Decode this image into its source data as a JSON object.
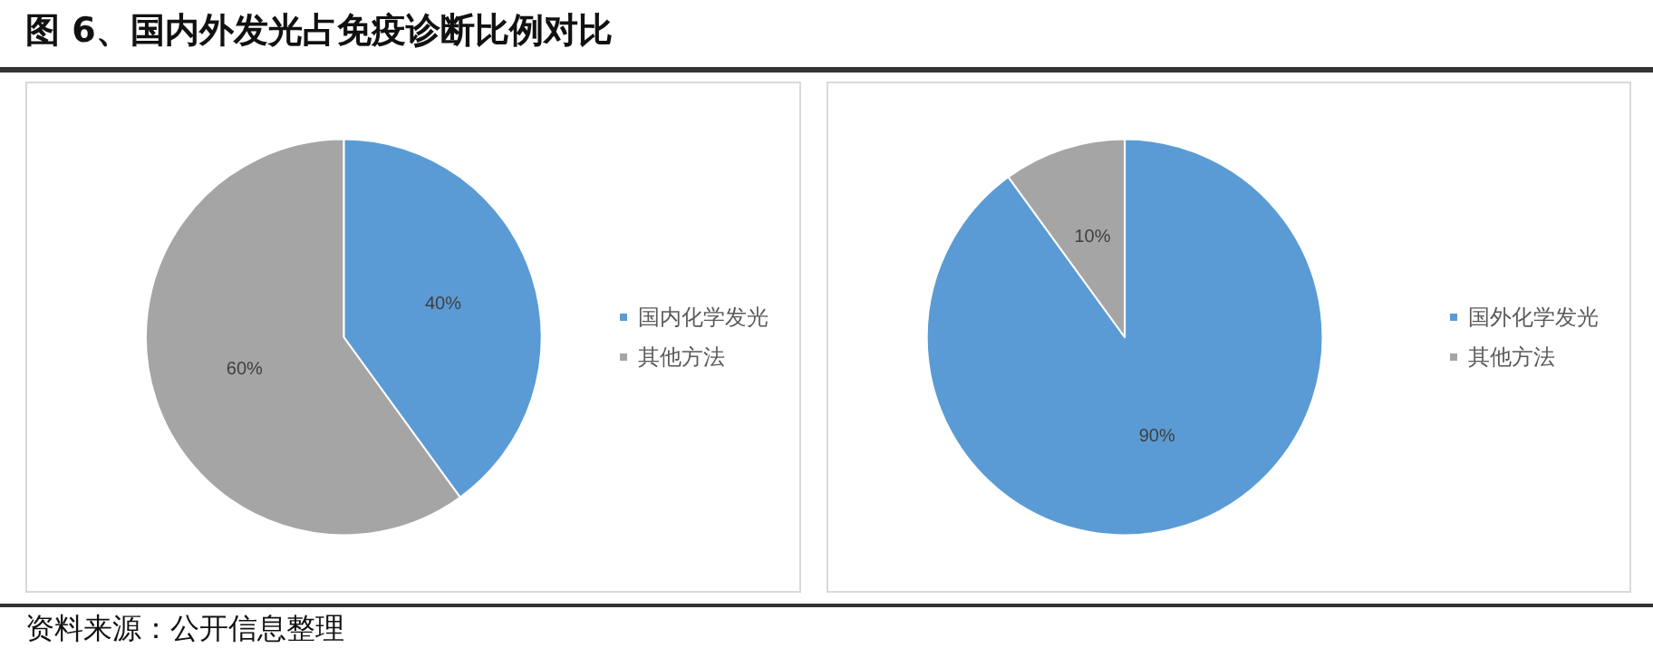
{
  "chart_data": [
    {
      "type": "pie",
      "title": "图 6、国内外发光占免疫诊断比例对比",
      "annotations": [
        "资料来源：公开信息整理"
      ],
      "categories": [
        "国内化学发光",
        "其他方法"
      ],
      "values": [
        40,
        60
      ],
      "value_labels": [
        "40%",
        "60%"
      ],
      "colors": [
        "#5b9bd5",
        "#a5a5a5"
      ],
      "legend": "right"
    },
    {
      "type": "pie",
      "categories": [
        "国外化学发光",
        "其他方法"
      ],
      "values": [
        90,
        10
      ],
      "value_labels": [
        "90%",
        "10%"
      ],
      "colors": [
        "#5b9bd5",
        "#a5a5a5"
      ],
      "legend": "right"
    }
  ]
}
